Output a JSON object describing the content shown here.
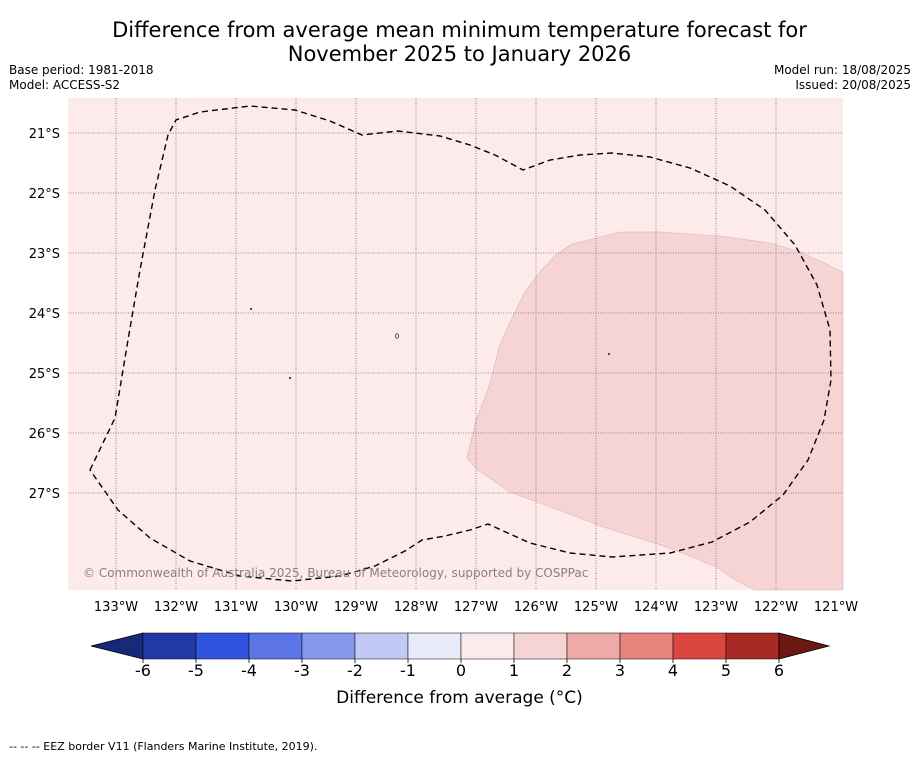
{
  "title_line1": "Difference from average mean minimum temperature forecast for",
  "title_line2": "November 2025 to January 2026",
  "base_period": "Base period: 1981-2018",
  "model": "Model: ACCESS-S2",
  "model_run": "Model run: 18/08/2025",
  "issued": "Issued: 20/08/2025",
  "copyright": "© Commonwealth of Australia 2025, Bureau of Meteorology, supported by COSPPac",
  "lat_labels": [
    "21°S",
    "22°S",
    "23°S",
    "24°S",
    "25°S",
    "26°S",
    "27°S"
  ],
  "lon_labels": [
    "133°W",
    "132°W",
    "131°W",
    "130°W",
    "129°W",
    "128°W",
    "127°W",
    "126°W",
    "125°W",
    "124°W",
    "123°W",
    "122°W",
    "121°W"
  ],
  "colorbar": {
    "ticks": [
      "-6",
      "-5",
      "-4",
      "-3",
      "-2",
      "-1",
      "0",
      "1",
      "2",
      "3",
      "4",
      "5",
      "6"
    ],
    "colors": [
      "#2238a5",
      "#3054e0",
      "#5b74e6",
      "#8598eb",
      "#c2c9f5",
      "#e9ebfb",
      "#fcebea",
      "#f6d4d4",
      "#eeaaa6",
      "#e6847d",
      "#d9473f",
      "#a82a24"
    ],
    "under_color": "#172a7a",
    "over_color": "#6e1814",
    "label": "Difference from average (°C)"
  },
  "map": {
    "background_anomaly_class": "0 to 1",
    "background_color": "#fcebea",
    "region_anomaly_class": "1 to 2",
    "region_color": "#f6d4d4"
  },
  "footnote": "-- -- -- EEZ border V11 (Flanders Marine Institute, 2019)."
}
